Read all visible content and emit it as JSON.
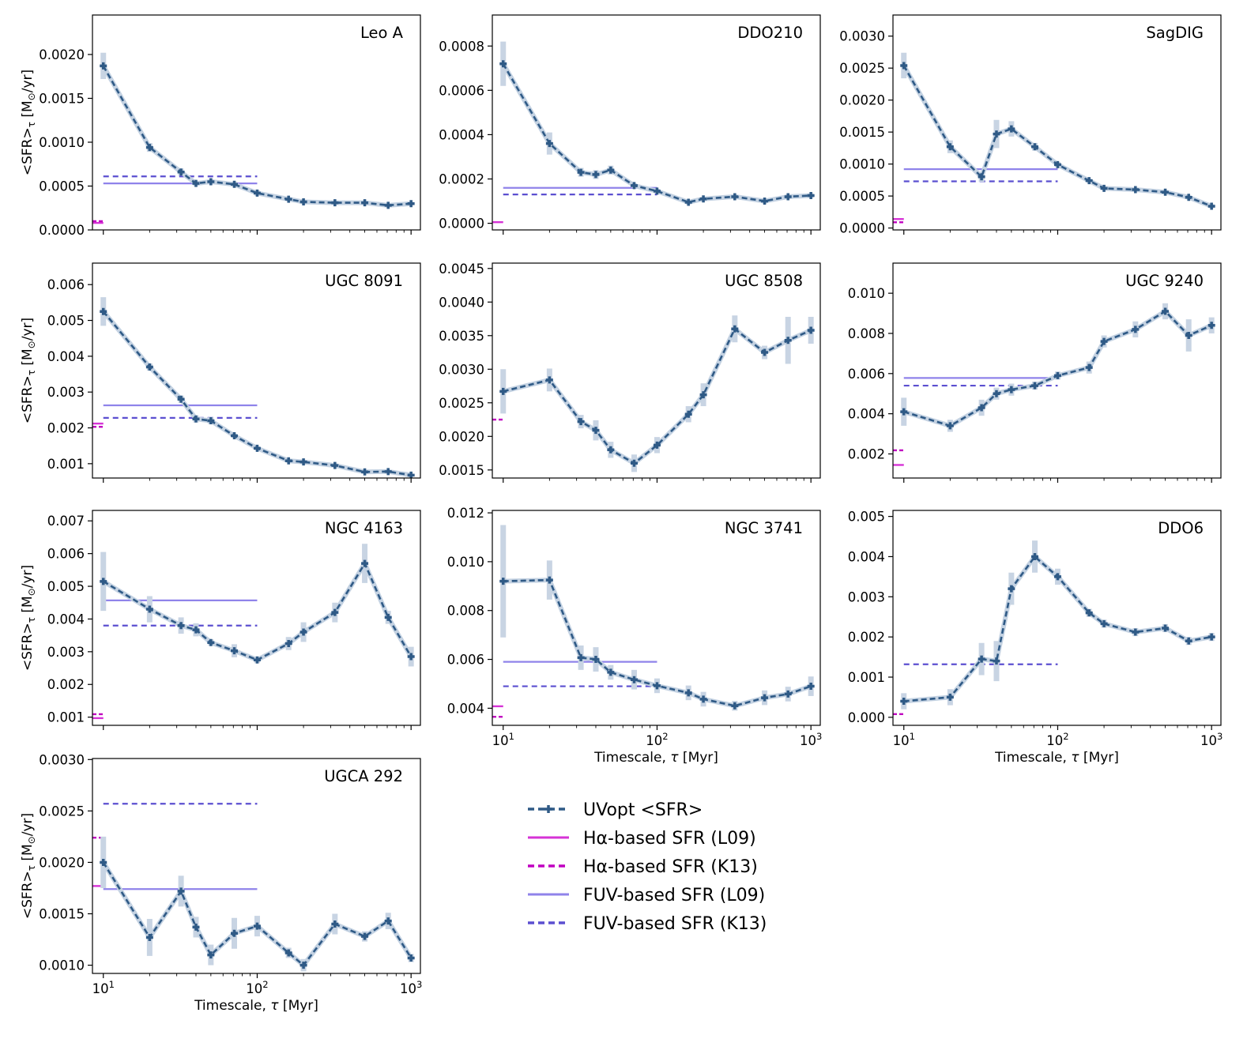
{
  "figure": {
    "ylabel_main": "<SFR>",
    "ylabel_sub": "τ",
    "ylabel_unit_pre": " [M",
    "ylabel_unit_sym": "⊙",
    "ylabel_unit_post": "/yr]",
    "xlabel_pre": "Timescale, ",
    "xlabel_sym": "τ",
    "xlabel_post": " [Myr]",
    "xticks": [
      "10",
      "10",
      "10"
    ],
    "xtick_exps": [
      "1",
      "2",
      "3"
    ]
  },
  "colors": {
    "uvopt": "#2f5a86",
    "errbar": "#c8d4e3",
    "ha": "#d633d6",
    "ha_k13": "#c000c0",
    "fuv": "#8f83ea",
    "fuv_k13": "#5b4fd0"
  },
  "legend": [
    {
      "key": "uvopt",
      "label": "UVopt <SFR>"
    },
    {
      "key": "ha_l09",
      "label": "Hα-based SFR (L09)"
    },
    {
      "key": "ha_k13",
      "label": "Hα-based SFR (K13)"
    },
    {
      "key": "fuv_l09",
      "label": "FUV-based SFR (L09)"
    },
    {
      "key": "fuv_k13",
      "label": "FUV-based SFR (K13)"
    }
  ],
  "chart_data": [
    {
      "type": "line",
      "title": "Leo A",
      "xscale": "log",
      "xlim": [
        8.5,
        1150
      ],
      "ylim": [
        0,
        0.00245
      ],
      "yticks": [
        0,
        0.0005,
        0.001,
        0.0015,
        0.002
      ],
      "yticklabels": [
        "0.0000",
        "0.0005",
        "0.0010",
        "0.0015",
        "0.0020"
      ],
      "show_x_ticklabels": false,
      "show_ylabel": true,
      "x": [
        10,
        20,
        32,
        40,
        50,
        71,
        100,
        160,
        200,
        320,
        500,
        710,
        1000
      ],
      "y": [
        0.00187,
        0.00094,
        0.00066,
        0.00053,
        0.00055,
        0.00052,
        0.00042,
        0.00035,
        0.00032,
        0.00031,
        0.00031,
        0.00028,
        0.0003
      ],
      "err": [
        0.00015,
        5e-05,
        4e-05,
        3e-05,
        3e-05,
        3e-05,
        3e-05,
        2e-05,
        2e-05,
        2e-05,
        2e-05,
        2e-05,
        2e-05
      ],
      "fuv_l09": 0.00053,
      "fuv_k13": 0.00061,
      "ha_l09": 8e-05,
      "ha_k13": 0.0001
    },
    {
      "type": "line",
      "title": "DDO210",
      "xscale": "log",
      "xlim": [
        8.5,
        1150
      ],
      "ylim": [
        -3e-05,
        0.00094
      ],
      "yticks": [
        0,
        0.0002,
        0.0004,
        0.0006,
        0.0008
      ],
      "yticklabels": [
        "0.0000",
        "0.0002",
        "0.0004",
        "0.0006",
        "0.0008"
      ],
      "show_x_ticklabels": false,
      "show_ylabel": false,
      "x": [
        10,
        20,
        32,
        40,
        50,
        71,
        100,
        160,
        200,
        320,
        500,
        710,
        1000
      ],
      "y": [
        0.00072,
        0.00036,
        0.00023,
        0.00022,
        0.00024,
        0.00017,
        0.000145,
        9.5e-05,
        0.00011,
        0.00012,
        0.0001,
        0.00012,
        0.000125
      ],
      "err": [
        0.0001,
        5e-05,
        2e-05,
        2e-05,
        2e-05,
        1e-05,
        1e-05,
        1e-05,
        1e-05,
        1e-05,
        1e-05,
        1e-05,
        1e-05
      ],
      "fuv_l09": 0.00016,
      "fuv_k13": 0.00013,
      "ha_l09": 5e-06,
      "ha_k13": null
    },
    {
      "type": "line",
      "title": "SagDIG",
      "xscale": "log",
      "xlim": [
        8.5,
        1150
      ],
      "ylim": [
        -3e-05,
        0.00333
      ],
      "yticks": [
        0,
        0.0005,
        0.001,
        0.0015,
        0.002,
        0.0025,
        0.003
      ],
      "yticklabels": [
        "0.0000",
        "0.0005",
        "0.0010",
        "0.0015",
        "0.0020",
        "0.0025",
        "0.0030"
      ],
      "show_x_ticklabels": false,
      "show_ylabel": false,
      "x": [
        10,
        20,
        32,
        40,
        50,
        71,
        100,
        160,
        200,
        320,
        500,
        710,
        1000
      ],
      "y": [
        0.00254,
        0.00127,
        0.0008,
        0.00147,
        0.00155,
        0.00127,
        0.00099,
        0.00074,
        0.00062,
        0.0006,
        0.00056,
        0.00048,
        0.00034
      ],
      "err": [
        0.0002,
        0.0001,
        8e-05,
        0.00022,
        0.00012,
        6e-05,
        4e-05,
        3e-05,
        3e-05,
        3e-05,
        3e-05,
        3e-05,
        3e-05
      ],
      "fuv_l09": 0.00092,
      "fuv_k13": 0.00073,
      "ha_l09": 0.00014,
      "ha_k13": 9e-05
    },
    {
      "type": "line",
      "title": "UGC 8091",
      "xscale": "log",
      "xlim": [
        8.5,
        1150
      ],
      "ylim": [
        0.0006,
        0.0066
      ],
      "yticks": [
        0.001,
        0.002,
        0.003,
        0.004,
        0.005,
        0.006
      ],
      "yticklabels": [
        "0.001",
        "0.002",
        "0.003",
        "0.004",
        "0.005",
        "0.006"
      ],
      "show_x_ticklabels": false,
      "show_ylabel": true,
      "x": [
        10,
        20,
        32,
        40,
        50,
        71,
        100,
        160,
        200,
        320,
        500,
        710,
        1000
      ],
      "y": [
        0.00525,
        0.0037,
        0.0028,
        0.00225,
        0.0022,
        0.00178,
        0.00143,
        0.00108,
        0.00105,
        0.00095,
        0.00077,
        0.00078,
        0.00068
      ],
      "err": [
        0.0004,
        0.0001,
        0.0001,
        0.0001,
        0.0001,
        5e-05,
        5e-05,
        4e-05,
        4e-05,
        4e-05,
        4e-05,
        4e-05,
        4e-05
      ],
      "fuv_l09": 0.00263,
      "fuv_k13": 0.00228,
      "ha_l09": 0.00212,
      "ha_k13": 0.00203
    },
    {
      "type": "line",
      "title": "UGC 8508",
      "xscale": "log",
      "xlim": [
        8.5,
        1150
      ],
      "ylim": [
        0.00138,
        0.00458
      ],
      "yticks": [
        0.0015,
        0.002,
        0.0025,
        0.003,
        0.0035,
        0.004,
        0.0045
      ],
      "yticklabels": [
        "0.0015",
        "0.0020",
        "0.0025",
        "0.0030",
        "0.0035",
        "0.0040",
        "0.0045"
      ],
      "show_x_ticklabels": false,
      "show_ylabel": false,
      "x": [
        10,
        20,
        32,
        40,
        50,
        71,
        100,
        160,
        200,
        320,
        500,
        710,
        1000
      ],
      "y": [
        0.00267,
        0.00284,
        0.00222,
        0.00209,
        0.0018,
        0.0016,
        0.00187,
        0.00233,
        0.00262,
        0.0036,
        0.00325,
        0.00343,
        0.00358
      ],
      "err": [
        0.00033,
        0.00017,
        0.0001,
        0.00015,
        0.00012,
        0.00013,
        0.00012,
        0.00012,
        0.00017,
        0.0002,
        0.0001,
        0.00035,
        0.0002
      ],
      "fuv_l09": null,
      "fuv_k13": null,
      "ha_l09": null,
      "ha_k13": 0.00225
    },
    {
      "type": "line",
      "title": "UGC 9240",
      "xscale": "log",
      "xlim": [
        8.5,
        1150
      ],
      "ylim": [
        0.0008,
        0.0115
      ],
      "yticks": [
        0.002,
        0.004,
        0.006,
        0.008,
        0.01
      ],
      "yticklabels": [
        "0.002",
        "0.004",
        "0.006",
        "0.008",
        "0.010"
      ],
      "show_x_ticklabels": false,
      "show_ylabel": false,
      "x": [
        10,
        20,
        32,
        40,
        50,
        71,
        100,
        160,
        200,
        320,
        500,
        710,
        1000
      ],
      "y": [
        0.0041,
        0.0034,
        0.0043,
        0.005,
        0.0052,
        0.0054,
        0.0059,
        0.0063,
        0.0076,
        0.0082,
        0.0091,
        0.0079,
        0.0084
      ],
      "err": [
        0.0007,
        0.0003,
        0.0004,
        0.0003,
        0.0003,
        0.0002,
        0.0002,
        0.0003,
        0.0003,
        0.0004,
        0.0004,
        0.0008,
        0.0004
      ],
      "fuv_l09": 0.00578,
      "fuv_k13": 0.0054,
      "ha_l09": 0.00145,
      "ha_k13": 0.00218
    },
    {
      "type": "line",
      "title": "NGC 4163",
      "xscale": "log",
      "xlim": [
        8.5,
        1150
      ],
      "ylim": [
        0.00075,
        0.00732
      ],
      "yticks": [
        0.001,
        0.002,
        0.003,
        0.004,
        0.005,
        0.006,
        0.007
      ],
      "yticklabels": [
        "0.001",
        "0.002",
        "0.003",
        "0.004",
        "0.005",
        "0.006",
        "0.007"
      ],
      "show_x_ticklabels": false,
      "show_ylabel": true,
      "x": [
        10,
        20,
        32,
        40,
        50,
        71,
        100,
        160,
        200,
        320,
        500,
        710,
        1000
      ],
      "y": [
        0.00515,
        0.0043,
        0.0038,
        0.00367,
        0.00328,
        0.00303,
        0.00275,
        0.00325,
        0.0036,
        0.0042,
        0.0057,
        0.00405,
        0.00285
      ],
      "err": [
        0.0009,
        0.0004,
        0.00025,
        0.0002,
        0.0001,
        0.0002,
        0.0001,
        0.0002,
        0.0003,
        0.0003,
        0.0006,
        0.0002,
        0.0003
      ],
      "fuv_l09": 0.00457,
      "fuv_k13": 0.0038,
      "ha_l09": 0.00097,
      "ha_k13": 0.00109
    },
    {
      "type": "line",
      "title": "NGC 3741",
      "xscale": "log",
      "xlim": [
        8.5,
        1150
      ],
      "ylim": [
        0.0033,
        0.0121
      ],
      "yticks": [
        0.004,
        0.006,
        0.008,
        0.01,
        0.012
      ],
      "yticklabels": [
        "0.004",
        "0.006",
        "0.008",
        "0.010",
        "0.012"
      ],
      "show_x_ticklabels": true,
      "show_ylabel": false,
      "x": [
        10,
        20,
        32,
        40,
        50,
        71,
        100,
        160,
        200,
        320,
        500,
        710,
        1000
      ],
      "y": [
        0.0092,
        0.00925,
        0.00607,
        0.006,
        0.00547,
        0.00517,
        0.00492,
        0.00463,
        0.00437,
        0.0041,
        0.00443,
        0.00458,
        0.0049
      ],
      "err": [
        0.0023,
        0.0008,
        0.0005,
        0.0005,
        0.0003,
        0.0004,
        0.0003,
        0.0003,
        0.0003,
        0.0002,
        0.0003,
        0.0003,
        0.0004
      ],
      "fuv_l09": 0.0059,
      "fuv_k13": 0.0049,
      "ha_l09": 0.00408,
      "ha_k13": 0.00365
    },
    {
      "type": "line",
      "title": "DDO6",
      "xscale": "log",
      "xlim": [
        8.5,
        1150
      ],
      "ylim": [
        -0.0002,
        0.00515
      ],
      "yticks": [
        0,
        0.001,
        0.002,
        0.003,
        0.004,
        0.005
      ],
      "yticklabels": [
        "0.000",
        "0.001",
        "0.002",
        "0.003",
        "0.004",
        "0.005"
      ],
      "show_x_ticklabels": true,
      "show_ylabel": false,
      "x": [
        10,
        20,
        32,
        40,
        50,
        71,
        100,
        160,
        200,
        320,
        500,
        710,
        1000
      ],
      "y": [
        0.0004,
        0.0005,
        0.00145,
        0.0014,
        0.0032,
        0.004,
        0.0035,
        0.0026,
        0.00233,
        0.00212,
        0.00222,
        0.0019,
        0.002
      ],
      "err": [
        0.0002,
        0.0002,
        0.0004,
        0.0005,
        0.0004,
        0.0004,
        0.0002,
        0.0001,
        0.0001,
        0.0001,
        0.0001,
        0.0001,
        0.0001
      ],
      "fuv_l09": null,
      "fuv_k13": 0.00132,
      "ha_l09": null,
      "ha_k13": 8e-05
    },
    {
      "type": "line",
      "title": "UGCA 292",
      "xscale": "log",
      "xlim": [
        8.5,
        1150
      ],
      "ylim": [
        0.00092,
        0.00301
      ],
      "yticks": [
        0.001,
        0.0015,
        0.002,
        0.0025,
        0.003
      ],
      "yticklabels": [
        "0.0010",
        "0.0015",
        "0.0020",
        "0.0025",
        "0.0030"
      ],
      "show_x_ticklabels": true,
      "show_ylabel": true,
      "x": [
        10,
        20,
        32,
        40,
        50,
        71,
        100,
        160,
        200,
        320,
        500,
        710,
        1000
      ],
      "y": [
        0.002,
        0.00127,
        0.00172,
        0.00137,
        0.0011,
        0.00131,
        0.00138,
        0.00112,
        0.001,
        0.0014,
        0.00128,
        0.00143,
        0.00107
      ],
      "err": [
        0.00025,
        0.00018,
        0.00015,
        0.0001,
        0.0001,
        0.00015,
        0.0001,
        5e-05,
        6e-05,
        0.0001,
        5e-05,
        8e-05,
        4e-05
      ],
      "fuv_l09": 0.00174,
      "fuv_k13": 0.00257,
      "ha_l09": 0.00177,
      "ha_k13": 0.00224
    }
  ]
}
